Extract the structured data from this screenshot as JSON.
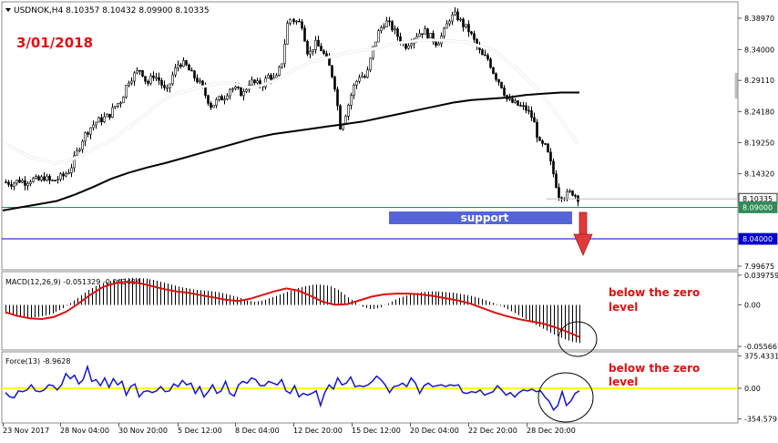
{
  "header": {
    "symbol_text": "USDNOK,H4  8.10357 8.10432 8.09900 8.10335",
    "date_note": "3/01/2018"
  },
  "colors": {
    "candles": "#000000",
    "ma_fast": "#ffffff",
    "ma_slow": "#000000",
    "support_line": "#2e8b57",
    "target_line": "#0000cc",
    "support_box": "#5565d8",
    "arrow": "#e03a3a",
    "macd_signal": "#e01010",
    "force_line": "#1515cc",
    "force_zero": "#ffff00",
    "annotation": "#e01010"
  },
  "annotations": {
    "support_label": "support",
    "macd_note_line1": "below the zero",
    "macd_note_line2": "level",
    "force_note_line1": "below the zero",
    "force_note_line2": "level"
  },
  "chart_data": [
    {
      "type": "candlestick",
      "series_name": "USDNOK,H4",
      "ylim": [
        7.99675,
        8.4099
      ],
      "y_ticks": [
        "8.38970",
        "8.34000",
        "8.29110",
        "8.24180",
        "8.19250",
        "8.14320",
        "7.99675"
      ],
      "price_tags": [
        {
          "label": "8.10335",
          "value": 8.10335,
          "style": "current"
        },
        {
          "label": "8.09000",
          "value": 8.09,
          "style": "support"
        },
        {
          "label": "8.04000",
          "value": 8.04,
          "style": "target"
        }
      ],
      "x_ticks": [
        "23 Nov 2017",
        "28 Nov 04:00",
        "30 Nov 20:00",
        "5 Dec 12:00",
        "8 Dec 04:00",
        "12 Dec 20:00",
        "15 Dec 12:00",
        "20 Dec 04:00",
        "22 Dec 20:00",
        "28 Dec 20:00"
      ],
      "close_path": [
        8.13,
        8.128,
        8.133,
        8.13,
        8.135,
        8.132,
        8.138,
        8.13,
        8.135,
        8.14,
        8.15,
        8.175,
        8.2,
        8.215,
        8.225,
        8.23,
        8.235,
        8.25,
        8.26,
        8.29,
        8.3,
        8.31,
        8.285,
        8.3,
        8.29,
        8.27,
        8.3,
        8.32,
        8.315,
        8.3,
        8.29,
        8.27,
        8.25,
        8.26,
        8.265,
        8.28,
        8.275,
        8.27,
        8.29,
        8.285,
        8.285,
        8.3,
        8.29,
        8.32,
        8.39,
        8.385,
        8.38,
        8.33,
        8.35,
        8.34,
        8.32,
        8.29,
        8.215,
        8.245,
        8.28,
        8.3,
        8.295,
        8.34,
        8.37,
        8.385,
        8.375,
        8.36,
        8.345,
        8.355,
        8.365,
        8.37,
        8.36,
        8.35,
        8.365,
        8.39,
        8.395,
        8.38,
        8.37,
        8.35,
        8.33,
        8.325,
        8.3,
        8.285,
        8.26,
        8.255,
        8.25,
        8.245,
        8.23,
        8.19,
        8.185,
        8.15,
        8.11,
        8.108,
        8.115,
        8.105
      ],
      "ma_fast_path": [
        8.19,
        8.18,
        8.17,
        8.165,
        8.16,
        8.163,
        8.17,
        8.18,
        8.19,
        8.2,
        8.215,
        8.23,
        8.245,
        8.26,
        8.27,
        8.275,
        8.28,
        8.285,
        8.288,
        8.285,
        8.28,
        8.283,
        8.29,
        8.3,
        8.31,
        8.32,
        8.325,
        8.33,
        8.335,
        8.338,
        8.34,
        8.345,
        8.35,
        8.352,
        8.355,
        8.355,
        8.355,
        8.353,
        8.352,
        8.345,
        8.34,
        8.325,
        8.31,
        8.29,
        8.27,
        8.245,
        8.22,
        8.19
      ],
      "ma_slow_path": [
        8.085,
        8.09,
        8.095,
        8.1,
        8.11,
        8.122,
        8.135,
        8.145,
        8.153,
        8.16,
        8.168,
        8.176,
        8.184,
        8.192,
        8.2,
        8.206,
        8.21,
        8.214,
        8.218,
        8.222,
        8.226,
        8.232,
        8.238,
        8.244,
        8.25,
        8.256,
        8.26,
        8.262,
        8.264,
        8.268,
        8.27,
        8.272,
        8.272
      ],
      "levels": [
        {
          "name": "support",
          "value": 8.09
        },
        {
          "name": "target",
          "value": 8.04
        }
      ]
    },
    {
      "type": "histogram+line",
      "series_name": "MACD(12,26,9) -0.051329 -0.043484",
      "ylim": [
        -0.058,
        0.042
      ],
      "y_ticks": [
        "0.039759",
        "0.00",
        "-0.055667"
      ],
      "histogram": [
        -0.012,
        -0.014,
        -0.016,
        -0.017,
        -0.016,
        -0.014,
        -0.01,
        -0.004,
        0.004,
        0.012,
        0.02,
        0.026,
        0.03,
        0.033,
        0.035,
        0.036,
        0.036,
        0.035,
        0.033,
        0.03,
        0.027,
        0.024,
        0.022,
        0.02,
        0.019,
        0.018,
        0.016,
        0.013,
        0.01,
        0.006,
        0.004,
        0.006,
        0.01,
        0.014,
        0.018,
        0.022,
        0.025,
        0.027,
        0.027,
        0.025,
        0.02,
        0.012,
        0.004,
        -0.003,
        -0.006,
        -0.004,
        0.002,
        0.008,
        0.012,
        0.015,
        0.017,
        0.018,
        0.018,
        0.017,
        0.016,
        0.014,
        0.012,
        0.009,
        0.005,
        0.001,
        -0.004,
        -0.01,
        -0.016,
        -0.022,
        -0.028,
        -0.034,
        -0.04,
        -0.045,
        -0.049,
        -0.051
      ],
      "signal": [
        -0.01,
        -0.015,
        -0.018,
        -0.019,
        -0.016,
        -0.009,
        0.002,
        0.014,
        0.024,
        0.029,
        0.031,
        0.029,
        0.025,
        0.021,
        0.018,
        0.016,
        0.013,
        0.01,
        0.007,
        0.005,
        0.008,
        0.013,
        0.018,
        0.022,
        0.019,
        0.012,
        0.004,
        0.0,
        0.001,
        0.006,
        0.011,
        0.014,
        0.015,
        0.015,
        0.014,
        0.012,
        0.009,
        0.006,
        0.002,
        -0.004,
        -0.01,
        -0.015,
        -0.019,
        -0.022,
        -0.025,
        -0.03,
        -0.036,
        -0.043
      ]
    },
    {
      "type": "line",
      "series_name": "Force(13) -8.9628",
      "ylim": [
        -380,
        400
      ],
      "y_ticks": [
        "375.4331",
        "0.00",
        "-354.5791"
      ],
      "values": [
        -50,
        -100,
        -110,
        -30,
        -40,
        -20,
        40,
        -30,
        -40,
        -20,
        40,
        30,
        -20,
        40,
        170,
        110,
        150,
        50,
        100,
        250,
        80,
        100,
        30,
        120,
        10,
        110,
        40,
        80,
        -80,
        20,
        50,
        -100,
        -40,
        -30,
        -50,
        -30,
        20,
        -40,
        -30,
        50,
        20,
        90,
        40,
        60,
        -60,
        20,
        -100,
        -40,
        40,
        -60,
        -30,
        80,
        -60,
        -90,
        40,
        80,
        60,
        120,
        100,
        30,
        30,
        80,
        60,
        40,
        100,
        -30,
        -60,
        30,
        -100,
        -60,
        -80,
        -60,
        -30,
        -200,
        -50,
        40,
        -10,
        120,
        40,
        60,
        130,
        20,
        30,
        20,
        40,
        80,
        140,
        100,
        40,
        -50,
        20,
        30,
        60,
        20,
        120,
        60,
        -60,
        30,
        60,
        20,
        30,
        40,
        20,
        40,
        30,
        40,
        -50,
        -60,
        -40,
        -50,
        -20,
        -80,
        -60,
        -40,
        30,
        -20,
        -80,
        -50,
        -100,
        -50,
        -20,
        -30,
        -10,
        -40,
        -30,
        -100,
        -150,
        -250,
        -200,
        -40,
        -200,
        -150,
        -60,
        -30
      ]
    }
  ]
}
